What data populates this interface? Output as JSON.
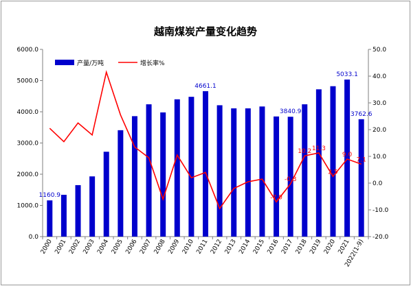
{
  "chart_data": {
    "type": "bar",
    "title": "越南煤炭产量变化趋势",
    "categories": [
      "2000",
      "2001",
      "2002",
      "2003",
      "2004",
      "2005",
      "2006",
      "2007",
      "2008",
      "2009",
      "2010",
      "2011",
      "2012",
      "2013",
      "2014",
      "2015",
      "2016",
      "2017",
      "2018",
      "2019",
      "2020",
      "2021",
      "2022(1-9)"
    ],
    "series": [
      {
        "name": "产量/万吨",
        "type": "bar",
        "axis": "left",
        "color": "#0000CC",
        "values": [
          1160.9,
          1340,
          1650,
          1930,
          2720,
          3410,
          3860,
          4240,
          3980,
          4400,
          4480,
          4661.1,
          4210,
          4110,
          4110,
          4170,
          3850,
          3840.9,
          4240,
          4720,
          4820,
          5033.1,
          3762.6
        ]
      },
      {
        "name": "增长率%",
        "type": "line",
        "axis": "right",
        "color": "#FF0000",
        "values": [
          20.5,
          15.5,
          22.5,
          18.0,
          41.5,
          25.5,
          13.5,
          9.5,
          -6.0,
          10.5,
          2.0,
          4.0,
          -9.5,
          -2.0,
          0.5,
          1.5,
          -7.0,
          -0.3,
          10.2,
          11.3,
          2.5,
          9.0,
          7.1
        ]
      }
    ],
    "bar_labels": [
      {
        "index": 0,
        "text": "1160.9"
      },
      {
        "index": 11,
        "text": "4661.1"
      },
      {
        "index": 17,
        "text": "3840.9"
      },
      {
        "index": 21,
        "text": "5033.1"
      },
      {
        "index": 22,
        "text": "3762.6"
      }
    ],
    "line_labels": [
      {
        "index": 16,
        "text": "-7.0"
      },
      {
        "index": 17,
        "text": "-0.3"
      },
      {
        "index": 18,
        "text": "10.2"
      },
      {
        "index": 19,
        "text": "11.3"
      },
      {
        "index": 20,
        "text": "2.5"
      },
      {
        "index": 21,
        "text": "9.0"
      },
      {
        "index": 22,
        "text": "7.1"
      }
    ],
    "ylim_left": [
      0,
      6000
    ],
    "yticks_left": [
      "0.0",
      "1000.0",
      "2000.0",
      "3000.0",
      "4000.0",
      "5000.0",
      "6000.0"
    ],
    "ylim_right": [
      -20,
      50
    ],
    "yticks_right": [
      "-20.0",
      "-10.0",
      "0.0",
      "10.0",
      "20.0",
      "30.0",
      "40.0",
      "50.0"
    ],
    "grid": false,
    "legend_position": "top-left"
  }
}
